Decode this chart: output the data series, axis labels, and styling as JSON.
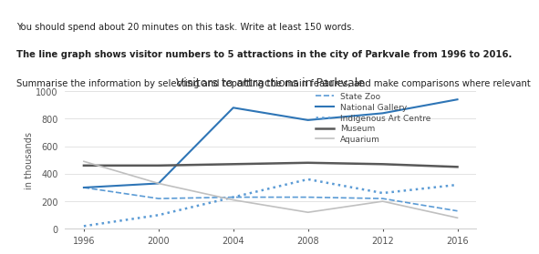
{
  "title": "Visitors to attractions in Parkvale",
  "ylabel": "in thousands",
  "years": [
    1996,
    2000,
    2004,
    2008,
    2012,
    2016
  ],
  "series": {
    "State Zoo": {
      "values": [
        300,
        220,
        230,
        230,
        220,
        130
      ],
      "color": "#5b9bd5",
      "linestyle": "--",
      "linewidth": 1.2
    },
    "National Gallery": {
      "values": [
        300,
        330,
        880,
        790,
        840,
        940
      ],
      "color": "#2e75b6",
      "linestyle": "-",
      "linewidth": 1.5
    },
    "Indigenous Art Centre": {
      "values": [
        20,
        100,
        230,
        360,
        260,
        320
      ],
      "color": "#5b9bd5",
      "linestyle": ":",
      "linewidth": 1.8
    },
    "Museum": {
      "values": [
        460,
        460,
        470,
        480,
        470,
        450
      ],
      "color": "#595959",
      "linestyle": "-",
      "linewidth": 1.8
    },
    "Aquarium": {
      "values": [
        490,
        330,
        210,
        120,
        200,
        80
      ],
      "color": "#c0c0c0",
      "linestyle": "-",
      "linewidth": 1.2
    }
  },
  "ylim": [
    0,
    1000
  ],
  "yticks": [
    0,
    200,
    400,
    600,
    800,
    1000
  ],
  "xticks": [
    1996,
    2000,
    2004,
    2008,
    2012,
    2016
  ],
  "bg_color": "#ffffff",
  "plot_bg": "#ffffff",
  "title_fontsize": 9,
  "axis_fontsize": 7,
  "legend_fontsize": 6.5,
  "text_lines": [
    {
      "text": "You should spend about 20 minutes on this task. Write at least 150 words.",
      "bold": false,
      "size": 7.2
    },
    {
      "text": "The line graph shows visitor numbers to 5 attractions in the city of Parkvale from 1996 to 2016.",
      "bold": true,
      "size": 7.2
    },
    {
      "text": "Summarise the information by selecting and reporting the main features, and make comparisons where relevant",
      "bold": false,
      "size": 7.2
    }
  ],
  "header_bg": "#e8f0f8"
}
